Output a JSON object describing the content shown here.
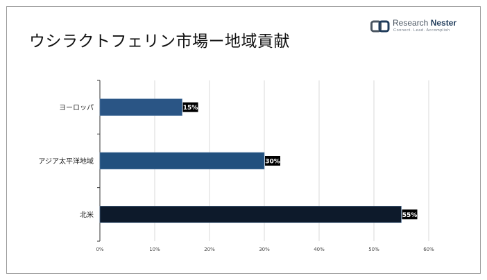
{
  "header": {
    "title": "ウシラクトフェリン市場ー地域貢献"
  },
  "logo": {
    "name_light": "Research ",
    "name_bold": "Nester",
    "tagline": "Connect. Lead. Accomplish"
  },
  "colors": {
    "bar_europe": "#2a5585",
    "bar_apac": "#22507e",
    "bar_na": "#0d1a2b",
    "label_bg": "#000000",
    "grid": "#d9d9d9"
  },
  "chart_data": {
    "type": "bar",
    "orientation": "horizontal",
    "categories": [
      "ヨーロッパ",
      "アジア太平洋地域",
      "北米"
    ],
    "values": [
      15,
      30,
      55
    ],
    "data_labels": [
      "15%",
      "30%",
      "55%"
    ],
    "xlim": [
      0,
      60
    ],
    "xticks": [
      0,
      10,
      20,
      30,
      40,
      50,
      60
    ],
    "xtick_labels": [
      "0%",
      "10%",
      "20%",
      "30%",
      "40%",
      "50%",
      "60%"
    ],
    "grid": true,
    "legend": "none"
  }
}
